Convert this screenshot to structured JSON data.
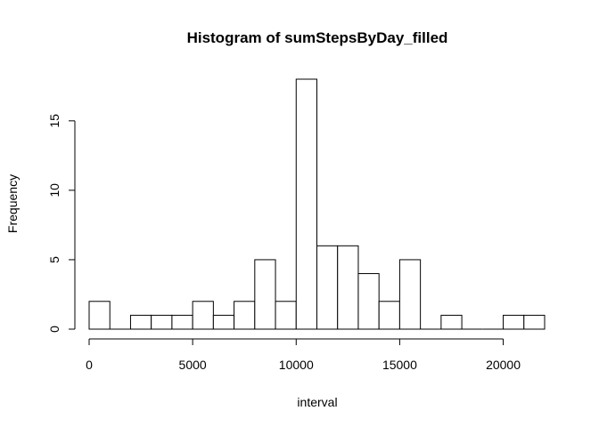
{
  "chart_data": {
    "type": "bar",
    "title": "Histogram of sumStepsByDay_filled",
    "xlabel": "interval",
    "ylabel": "Frequency",
    "bin_width": 1000,
    "bin_starts": [
      0,
      1000,
      2000,
      3000,
      4000,
      5000,
      6000,
      7000,
      8000,
      9000,
      10000,
      11000,
      12000,
      13000,
      14000,
      15000,
      16000,
      17000,
      18000,
      19000,
      20000,
      21000
    ],
    "values": [
      2,
      0,
      1,
      1,
      1,
      2,
      1,
      2,
      5,
      2,
      18,
      6,
      6,
      4,
      2,
      5,
      0,
      1,
      0,
      0,
      1,
      1
    ],
    "xlim": [
      0,
      22000
    ],
    "ylim": [
      0,
      18
    ],
    "x_ticks": [
      0,
      5000,
      10000,
      15000,
      20000
    ],
    "x_tick_labels": [
      "0",
      "5000",
      "10000",
      "15000",
      "20000"
    ],
    "y_ticks": [
      0,
      5,
      10,
      15
    ],
    "y_tick_labels": [
      "0",
      "5",
      "10",
      "15"
    ],
    "grid": false,
    "legend": "none"
  }
}
